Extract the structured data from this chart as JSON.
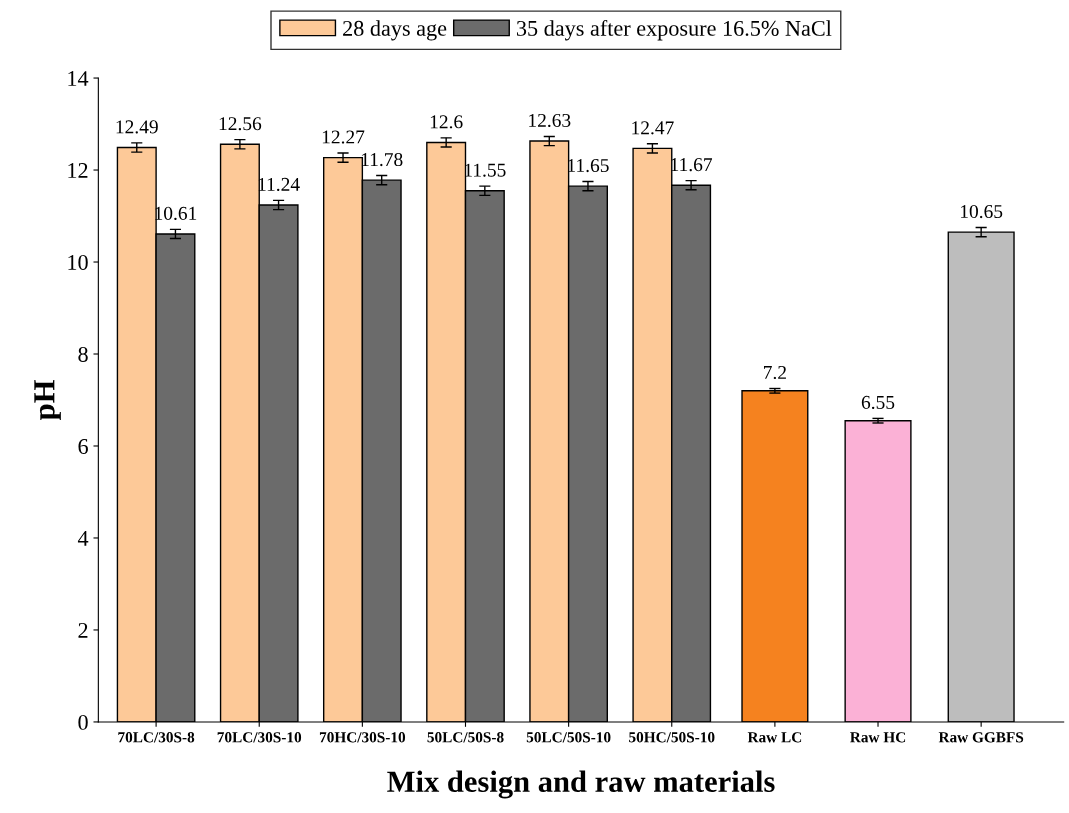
{
  "chart_data": {
    "type": "bar",
    "xlabel": "Mix design and raw materials",
    "ylabel": "pH",
    "categories": [
      "70LC/30S-8",
      "70LC/30S-10",
      "70HC/30S-10",
      "50LC/50S-8",
      "50LC/50S-10",
      "50HC/50S-10",
      "Raw LC",
      "Raw HC",
      "Raw GGBFS"
    ],
    "series": [
      {
        "name": "28 days age",
        "color": "#fdc998",
        "colors": [
          "#fdc998",
          "#fdc998",
          "#fdc998",
          "#fdc998",
          "#fdc998",
          "#fdc998",
          "#f5821f",
          "#fbb1d6",
          "#bdbdbd"
        ],
        "values": [
          12.49,
          12.56,
          12.27,
          12.6,
          12.63,
          12.47,
          7.2,
          6.55,
          10.65
        ],
        "errors": [
          0.1,
          0.1,
          0.1,
          0.1,
          0.1,
          0.1,
          0.05,
          0.05,
          0.1
        ]
      },
      {
        "name": "35 days after exposure 16.5% NaCl",
        "color": "#6b6b6b",
        "values": [
          10.61,
          11.24,
          11.78,
          11.55,
          11.65,
          11.67,
          null,
          null,
          null
        ],
        "errors": [
          0.1,
          0.1,
          0.1,
          0.1,
          0.1,
          0.1,
          null,
          null,
          null
        ]
      }
    ],
    "ylim": [
      0,
      14
    ],
    "yticks": [
      0,
      2,
      4,
      6,
      8,
      10,
      12,
      14
    ],
    "data_labels": true,
    "legend": "top",
    "grid": false
  }
}
